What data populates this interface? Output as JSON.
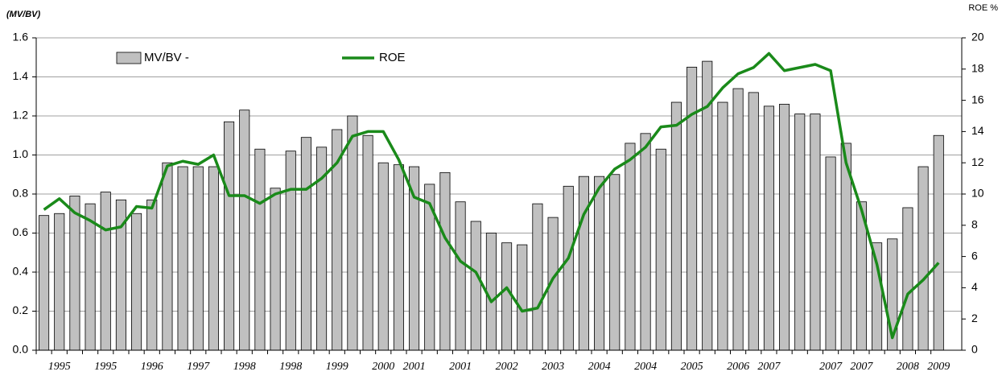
{
  "chart_data": {
    "type": "bar-line",
    "y_label": "(MV/BV)",
    "y2_label": "ROE %",
    "categories": [
      null,
      "1995",
      null,
      null,
      "1995",
      null,
      null,
      "1996",
      null,
      null,
      "1997",
      null,
      null,
      "1998",
      null,
      null,
      "1998",
      null,
      null,
      "1999",
      null,
      null,
      "2000",
      null,
      "2001",
      null,
      null,
      "2001",
      null,
      null,
      "2002",
      null,
      null,
      "2003",
      null,
      null,
      "2004",
      null,
      null,
      "2004",
      null,
      null,
      "2005",
      null,
      null,
      "2006",
      null,
      "2007",
      null,
      null,
      null,
      "2007",
      null,
      "2007",
      null,
      null,
      "2008",
      null,
      "2009"
    ],
    "series": [
      {
        "name": "MV/BV -",
        "kind": "bar",
        "color": "#c0c0c0",
        "values": [
          0.69,
          0.7,
          0.79,
          0.75,
          0.81,
          0.77,
          0.7,
          0.77,
          0.96,
          0.94,
          0.94,
          0.94,
          1.17,
          1.23,
          1.03,
          0.83,
          1.02,
          1.09,
          1.04,
          1.13,
          1.2,
          1.1,
          0.96,
          0.95,
          0.94,
          0.85,
          0.91,
          0.76,
          0.66,
          0.6,
          0.55,
          0.54,
          0.75,
          0.68,
          0.84,
          0.89,
          0.89,
          0.9,
          1.06,
          1.11,
          1.03,
          1.27,
          1.45,
          1.48,
          1.27,
          1.34,
          1.32,
          1.25,
          1.26,
          1.21,
          1.21,
          0.99,
          1.06,
          0.76,
          0.55,
          0.57,
          0.73,
          0.94,
          1.1
        ]
      },
      {
        "name": "ROE",
        "kind": "line",
        "axis": "y2",
        "color": "#1a8a1a",
        "values": [
          9.0,
          9.7,
          8.8,
          8.3,
          7.7,
          7.9,
          9.2,
          9.1,
          11.8,
          12.1,
          11.9,
          12.5,
          9.9,
          9.9,
          9.4,
          10.0,
          10.3,
          10.3,
          11.0,
          12.0,
          13.7,
          14.0,
          14.0,
          12.2,
          9.8,
          9.4,
          7.2,
          5.7,
          5.0,
          3.1,
          4.0,
          2.5,
          2.7,
          4.6,
          5.9,
          8.7,
          10.4,
          11.6,
          12.2,
          13.0,
          14.3,
          14.4,
          15.1,
          15.6,
          16.8,
          17.7,
          18.1,
          19.0,
          17.9,
          18.1,
          18.3,
          17.9,
          12.0,
          9.0,
          5.5,
          0.8,
          3.6,
          4.5,
          5.6
        ]
      }
    ],
    "ylim": [
      0,
      1.6
    ],
    "yticks": [
      {
        "value": 0,
        "label": "0.0"
      },
      {
        "value": 0.2,
        "label": "0.2"
      },
      {
        "value": 0.4,
        "label": "0.4"
      },
      {
        "value": 0.6,
        "label": "0.6"
      },
      {
        "value": 0.8,
        "label": "0.8"
      },
      {
        "value": 1,
        "label": "1.0"
      },
      {
        "value": 1.2,
        "label": "1.2"
      },
      {
        "value": 1.4,
        "label": "1.4"
      },
      {
        "value": 1.6,
        "label": "1.6"
      }
    ],
    "y2lim": [
      0,
      20
    ],
    "y2ticks": [
      0,
      2,
      4,
      6,
      8,
      10,
      12,
      14,
      16,
      18,
      20
    ],
    "grid": true
  }
}
